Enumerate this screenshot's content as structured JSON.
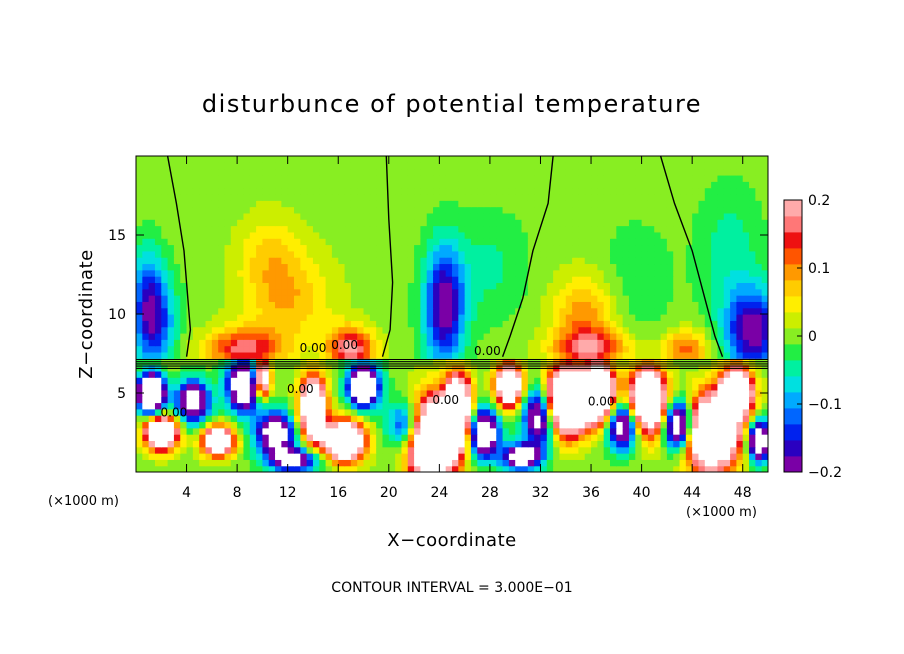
{
  "chart_data": {
    "type": "heatmap",
    "title": "disturbunce of potential temperature",
    "xlabel": "X−coordinate",
    "ylabel": "Z−coordinate",
    "x_unit_left": "(×1000 m)",
    "x_unit_right": "(×1000 m)",
    "xlim": [
      0,
      50
    ],
    "ylim": [
      0,
      20
    ],
    "x_ticks": [
      4,
      8,
      12,
      16,
      20,
      24,
      28,
      32,
      36,
      40,
      44,
      48
    ],
    "x_tick_labels": [
      "4",
      "8",
      "12",
      "16",
      "20",
      "24",
      "28",
      "32",
      "36",
      "40",
      "44",
      "48"
    ],
    "y_ticks": [
      5,
      10,
      15
    ],
    "y_tick_labels": [
      "5",
      "10",
      "15"
    ],
    "colorbar": {
      "range": [
        -0.2,
        0.2
      ],
      "ticks": [
        0.2,
        0.1,
        0,
        -0.1,
        -0.2
      ],
      "tick_labels": [
        "0.2",
        "0.1",
        "0",
        "−0.1",
        "−0.2"
      ],
      "colors": [
        "#7a00a6",
        "#2a00c0",
        "#0022ee",
        "#0066ff",
        "#00aaff",
        "#00e0e0",
        "#00f0a0",
        "#22ee44",
        "#88ee22",
        "#ccee00",
        "#ffee00",
        "#ffcc00",
        "#ff9900",
        "#ff5500",
        "#ee1111",
        "#ff7777",
        "#ffaaaa"
      ]
    },
    "contour_labels": [
      "0.00",
      "0.00",
      "0.00",
      "0.00",
      "0.00",
      "0.00",
      "0.00"
    ],
    "footer": "CONTOUR INTERVAL = 3.000E−01",
    "inversion_height": 7.2,
    "zero_contours": [
      [
        [
          2.5,
          20
        ],
        [
          3.2,
          17
        ],
        [
          3.8,
          14
        ],
        [
          4.1,
          11
        ],
        [
          4.3,
          9
        ],
        [
          4.0,
          7.3
        ]
      ],
      [
        [
          19.8,
          20
        ],
        [
          20.0,
          16
        ],
        [
          20.3,
          12
        ],
        [
          20.1,
          9
        ],
        [
          19.5,
          7.3
        ]
      ],
      [
        [
          33.0,
          20
        ],
        [
          32.6,
          17
        ],
        [
          31.4,
          14
        ],
        [
          30.6,
          11
        ],
        [
          29.6,
          8.6
        ],
        [
          29.0,
          7.3
        ]
      ],
      [
        [
          41.5,
          20
        ],
        [
          42.6,
          17
        ],
        [
          44.0,
          14
        ],
        [
          45.0,
          11
        ],
        [
          45.8,
          8.6
        ],
        [
          46.4,
          7.3
        ]
      ]
    ],
    "upper_field": {
      "background": 0.0,
      "features": [
        {
          "x": 1.5,
          "z": 9.5,
          "value": -0.15,
          "sx": 1.6,
          "sz": 3.2
        },
        {
          "x": 0.8,
          "z": 11.5,
          "value": -0.08,
          "sx": 1.2,
          "sz": 3.0
        },
        {
          "x": 24.4,
          "z": 10.5,
          "value": -0.2,
          "sx": 1.6,
          "sz": 3.8
        },
        {
          "x": 48.8,
          "z": 9.0,
          "value": -0.2,
          "sx": 2.2,
          "sz": 2.6
        },
        {
          "x": 47.0,
          "z": 14.0,
          "value": -0.05,
          "sx": 2.5,
          "sz": 4.0
        },
        {
          "x": 28.0,
          "z": 13.0,
          "value": -0.04,
          "sx": 3.0,
          "sz": 3.5
        },
        {
          "x": 39.5,
          "z": 12.0,
          "value": -0.03,
          "sx": 3.0,
          "sz": 4.0
        },
        {
          "x": 8.5,
          "z": 7.8,
          "value": 0.16,
          "sx": 3.0,
          "sz": 1.3
        },
        {
          "x": 17.0,
          "z": 7.8,
          "value": 0.19,
          "sx": 1.8,
          "sz": 1.4
        },
        {
          "x": 12.0,
          "z": 11.0,
          "value": 0.08,
          "sx": 3.5,
          "sz": 3.0
        },
        {
          "x": 10.5,
          "z": 14.0,
          "value": 0.05,
          "sx": 2.5,
          "sz": 2.5
        },
        {
          "x": 35.5,
          "z": 10.0,
          "value": 0.1,
          "sx": 2.5,
          "sz": 2.5
        },
        {
          "x": 36.0,
          "z": 7.8,
          "value": 0.15,
          "sx": 3.0,
          "sz": 1.2
        },
        {
          "x": 43.5,
          "z": 7.8,
          "value": 0.12,
          "sx": 1.8,
          "sz": 1.2
        }
      ]
    },
    "lower_field": {
      "background": 0.0,
      "features": [
        {
          "x": 2.0,
          "z": 2.5,
          "value": 0.5,
          "sx": 1.2,
          "sz": 1.0
        },
        {
          "x": 1.2,
          "z": 5.0,
          "value": -0.5,
          "sx": 1.0,
          "sz": 1.2
        },
        {
          "x": 4.5,
          "z": 4.5,
          "value": -0.3,
          "sx": 1.3,
          "sz": 1.3
        },
        {
          "x": 6.5,
          "z": 2.0,
          "value": 0.4,
          "sx": 1.2,
          "sz": 0.9
        },
        {
          "x": 8.5,
          "z": 5.5,
          "value": -0.35,
          "sx": 1.3,
          "sz": 1.6
        },
        {
          "x": 10.0,
          "z": 6.0,
          "value": 0.4,
          "sx": 0.6,
          "sz": 1.2
        },
        {
          "x": 11.0,
          "z": 2.5,
          "value": -0.3,
          "sx": 1.5,
          "sz": 1.3
        },
        {
          "x": 14.0,
          "z": 4.0,
          "value": 0.45,
          "sx": 1.0,
          "sz": 2.0
        },
        {
          "x": 16.5,
          "z": 2.0,
          "value": 0.5,
          "sx": 1.5,
          "sz": 1.2
        },
        {
          "x": 18.0,
          "z": 5.5,
          "value": -0.4,
          "sx": 1.2,
          "sz": 1.3
        },
        {
          "x": 21.5,
          "z": 3.0,
          "value": -0.2,
          "sx": 1.5,
          "sz": 1.5
        },
        {
          "x": 23.5,
          "z": 2.0,
          "value": 0.6,
          "sx": 1.8,
          "sz": 2.5
        },
        {
          "x": 25.5,
          "z": 4.0,
          "value": 0.5,
          "sx": 1.0,
          "sz": 2.0
        },
        {
          "x": 27.5,
          "z": 2.5,
          "value": -0.35,
          "sx": 1.2,
          "sz": 1.5
        },
        {
          "x": 29.5,
          "z": 5.5,
          "value": 0.45,
          "sx": 1.0,
          "sz": 1.3
        },
        {
          "x": 32.0,
          "z": 3.5,
          "value": -0.3,
          "sx": 1.3,
          "sz": 1.8
        },
        {
          "x": 34.0,
          "z": 4.5,
          "value": 0.6,
          "sx": 1.5,
          "sz": 2.0
        },
        {
          "x": 36.5,
          "z": 5.0,
          "value": 0.55,
          "sx": 1.3,
          "sz": 1.8
        },
        {
          "x": 38.5,
          "z": 3.0,
          "value": -0.3,
          "sx": 1.3,
          "sz": 1.5
        },
        {
          "x": 40.5,
          "z": 4.5,
          "value": 0.5,
          "sx": 1.4,
          "sz": 2.0
        },
        {
          "x": 43.0,
          "z": 3.0,
          "value": -0.4,
          "sx": 1.2,
          "sz": 1.5
        },
        {
          "x": 45.5,
          "z": 2.5,
          "value": 0.55,
          "sx": 2.0,
          "sz": 2.2
        },
        {
          "x": 47.5,
          "z": 5.0,
          "value": 0.5,
          "sx": 1.2,
          "sz": 1.5
        },
        {
          "x": 49.3,
          "z": 2.0,
          "value": -0.4,
          "sx": 0.8,
          "sz": 1.2
        },
        {
          "x": 30.5,
          "z": 1.0,
          "value": -0.3,
          "sx": 1.5,
          "sz": 0.8
        },
        {
          "x": 12.5,
          "z": 0.8,
          "value": -0.25,
          "sx": 2.0,
          "sz": 0.8
        }
      ]
    }
  }
}
